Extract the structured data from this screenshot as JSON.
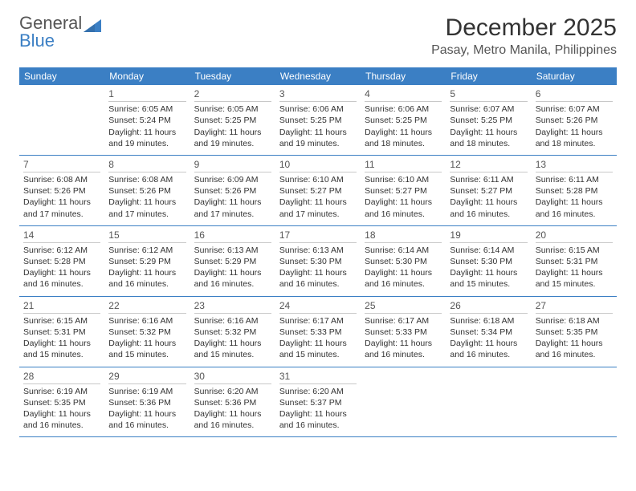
{
  "logo": {
    "line1": "General",
    "line2": "Blue"
  },
  "title": "December 2025",
  "location": "Pasay, Metro Manila, Philippines",
  "weekdays": [
    "Sunday",
    "Monday",
    "Tuesday",
    "Wednesday",
    "Thursday",
    "Friday",
    "Saturday"
  ],
  "colors": {
    "header_bg": "#3b7fc4",
    "header_text": "#ffffff",
    "row_border": "#3b7fc4",
    "daynum_border": "#c8c8c8",
    "text": "#333333",
    "location_text": "#555555"
  },
  "weeks": [
    [
      {
        "num": "",
        "sunrise": "",
        "sunset": "",
        "daylight": ""
      },
      {
        "num": "1",
        "sunrise": "Sunrise: 6:05 AM",
        "sunset": "Sunset: 5:24 PM",
        "daylight": "Daylight: 11 hours and 19 minutes."
      },
      {
        "num": "2",
        "sunrise": "Sunrise: 6:05 AM",
        "sunset": "Sunset: 5:25 PM",
        "daylight": "Daylight: 11 hours and 19 minutes."
      },
      {
        "num": "3",
        "sunrise": "Sunrise: 6:06 AM",
        "sunset": "Sunset: 5:25 PM",
        "daylight": "Daylight: 11 hours and 19 minutes."
      },
      {
        "num": "4",
        "sunrise": "Sunrise: 6:06 AM",
        "sunset": "Sunset: 5:25 PM",
        "daylight": "Daylight: 11 hours and 18 minutes."
      },
      {
        "num": "5",
        "sunrise": "Sunrise: 6:07 AM",
        "sunset": "Sunset: 5:25 PM",
        "daylight": "Daylight: 11 hours and 18 minutes."
      },
      {
        "num": "6",
        "sunrise": "Sunrise: 6:07 AM",
        "sunset": "Sunset: 5:26 PM",
        "daylight": "Daylight: 11 hours and 18 minutes."
      }
    ],
    [
      {
        "num": "7",
        "sunrise": "Sunrise: 6:08 AM",
        "sunset": "Sunset: 5:26 PM",
        "daylight": "Daylight: 11 hours and 17 minutes."
      },
      {
        "num": "8",
        "sunrise": "Sunrise: 6:08 AM",
        "sunset": "Sunset: 5:26 PM",
        "daylight": "Daylight: 11 hours and 17 minutes."
      },
      {
        "num": "9",
        "sunrise": "Sunrise: 6:09 AM",
        "sunset": "Sunset: 5:26 PM",
        "daylight": "Daylight: 11 hours and 17 minutes."
      },
      {
        "num": "10",
        "sunrise": "Sunrise: 6:10 AM",
        "sunset": "Sunset: 5:27 PM",
        "daylight": "Daylight: 11 hours and 17 minutes."
      },
      {
        "num": "11",
        "sunrise": "Sunrise: 6:10 AM",
        "sunset": "Sunset: 5:27 PM",
        "daylight": "Daylight: 11 hours and 16 minutes."
      },
      {
        "num": "12",
        "sunrise": "Sunrise: 6:11 AM",
        "sunset": "Sunset: 5:27 PM",
        "daylight": "Daylight: 11 hours and 16 minutes."
      },
      {
        "num": "13",
        "sunrise": "Sunrise: 6:11 AM",
        "sunset": "Sunset: 5:28 PM",
        "daylight": "Daylight: 11 hours and 16 minutes."
      }
    ],
    [
      {
        "num": "14",
        "sunrise": "Sunrise: 6:12 AM",
        "sunset": "Sunset: 5:28 PM",
        "daylight": "Daylight: 11 hours and 16 minutes."
      },
      {
        "num": "15",
        "sunrise": "Sunrise: 6:12 AM",
        "sunset": "Sunset: 5:29 PM",
        "daylight": "Daylight: 11 hours and 16 minutes."
      },
      {
        "num": "16",
        "sunrise": "Sunrise: 6:13 AM",
        "sunset": "Sunset: 5:29 PM",
        "daylight": "Daylight: 11 hours and 16 minutes."
      },
      {
        "num": "17",
        "sunrise": "Sunrise: 6:13 AM",
        "sunset": "Sunset: 5:30 PM",
        "daylight": "Daylight: 11 hours and 16 minutes."
      },
      {
        "num": "18",
        "sunrise": "Sunrise: 6:14 AM",
        "sunset": "Sunset: 5:30 PM",
        "daylight": "Daylight: 11 hours and 16 minutes."
      },
      {
        "num": "19",
        "sunrise": "Sunrise: 6:14 AM",
        "sunset": "Sunset: 5:30 PM",
        "daylight": "Daylight: 11 hours and 15 minutes."
      },
      {
        "num": "20",
        "sunrise": "Sunrise: 6:15 AM",
        "sunset": "Sunset: 5:31 PM",
        "daylight": "Daylight: 11 hours and 15 minutes."
      }
    ],
    [
      {
        "num": "21",
        "sunrise": "Sunrise: 6:15 AM",
        "sunset": "Sunset: 5:31 PM",
        "daylight": "Daylight: 11 hours and 15 minutes."
      },
      {
        "num": "22",
        "sunrise": "Sunrise: 6:16 AM",
        "sunset": "Sunset: 5:32 PM",
        "daylight": "Daylight: 11 hours and 15 minutes."
      },
      {
        "num": "23",
        "sunrise": "Sunrise: 6:16 AM",
        "sunset": "Sunset: 5:32 PM",
        "daylight": "Daylight: 11 hours and 15 minutes."
      },
      {
        "num": "24",
        "sunrise": "Sunrise: 6:17 AM",
        "sunset": "Sunset: 5:33 PM",
        "daylight": "Daylight: 11 hours and 15 minutes."
      },
      {
        "num": "25",
        "sunrise": "Sunrise: 6:17 AM",
        "sunset": "Sunset: 5:33 PM",
        "daylight": "Daylight: 11 hours and 16 minutes."
      },
      {
        "num": "26",
        "sunrise": "Sunrise: 6:18 AM",
        "sunset": "Sunset: 5:34 PM",
        "daylight": "Daylight: 11 hours and 16 minutes."
      },
      {
        "num": "27",
        "sunrise": "Sunrise: 6:18 AM",
        "sunset": "Sunset: 5:35 PM",
        "daylight": "Daylight: 11 hours and 16 minutes."
      }
    ],
    [
      {
        "num": "28",
        "sunrise": "Sunrise: 6:19 AM",
        "sunset": "Sunset: 5:35 PM",
        "daylight": "Daylight: 11 hours and 16 minutes."
      },
      {
        "num": "29",
        "sunrise": "Sunrise: 6:19 AM",
        "sunset": "Sunset: 5:36 PM",
        "daylight": "Daylight: 11 hours and 16 minutes."
      },
      {
        "num": "30",
        "sunrise": "Sunrise: 6:20 AM",
        "sunset": "Sunset: 5:36 PM",
        "daylight": "Daylight: 11 hours and 16 minutes."
      },
      {
        "num": "31",
        "sunrise": "Sunrise: 6:20 AM",
        "sunset": "Sunset: 5:37 PM",
        "daylight": "Daylight: 11 hours and 16 minutes."
      },
      {
        "num": "",
        "sunrise": "",
        "sunset": "",
        "daylight": ""
      },
      {
        "num": "",
        "sunrise": "",
        "sunset": "",
        "daylight": ""
      },
      {
        "num": "",
        "sunrise": "",
        "sunset": "",
        "daylight": ""
      }
    ]
  ]
}
